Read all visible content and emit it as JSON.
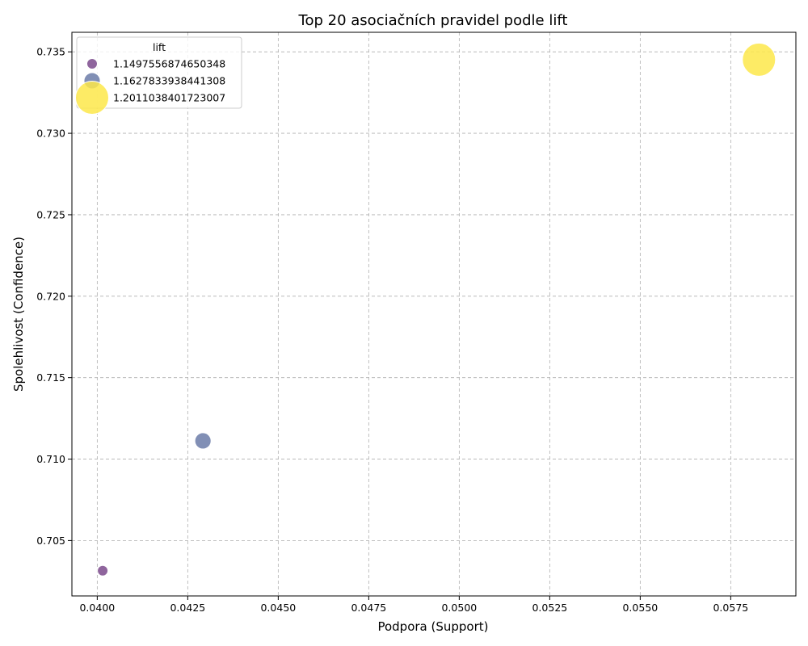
{
  "chart_data": {
    "type": "scatter",
    "title": "Top 20 asociačních pravidel podle lift",
    "xlabel": "Podpora (Support)",
    "ylabel": "Spolehlivost (Confidence)",
    "xlim": [
      0.0393,
      0.0593
    ],
    "ylim": [
      0.7016,
      0.7362
    ],
    "xticks": [
      "0.0400",
      "0.0425",
      "0.0450",
      "0.0475",
      "0.0500",
      "0.0525",
      "0.0550",
      "0.0575"
    ],
    "yticks": [
      "0.705",
      "0.710",
      "0.715",
      "0.720",
      "0.725",
      "0.730",
      "0.735"
    ],
    "grid": true,
    "legend": {
      "title": "lift",
      "placement": "top-left",
      "entries": [
        "1.1497556874650348",
        "1.1627833938441308",
        "1.2011038401723007"
      ]
    },
    "points": [
      {
        "x": 0.04015,
        "y": 0.70315,
        "lift": 1.1497556874650348,
        "color": "#7b4a8c"
      },
      {
        "x": 0.04292,
        "y": 0.71112,
        "lift": 1.1627833938441308,
        "color": "#6b7ba8"
      },
      {
        "x": 0.05828,
        "y": 0.73452,
        "lift": 1.2011038401723007,
        "color": "#fde84a"
      }
    ]
  }
}
